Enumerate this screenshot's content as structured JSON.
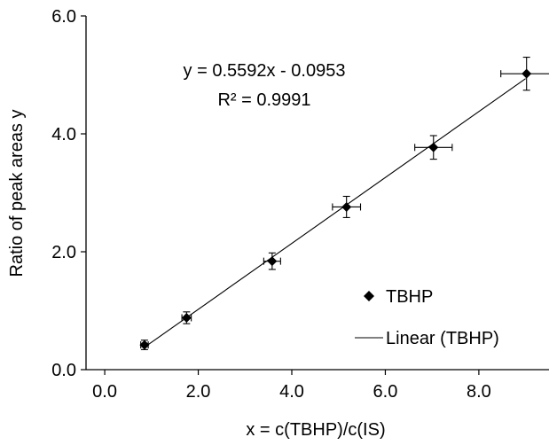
{
  "chart_data": {
    "type": "scatter",
    "title": "",
    "xlabel": "x = c(TBHP)/c(IS)",
    "ylabel": "Ratio of peak areas y",
    "xlim": [
      -0.4,
      9.5
    ],
    "ylim": [
      0.0,
      6.0
    ],
    "xticks": [
      0.0,
      2.0,
      4.0,
      6.0,
      8.0
    ],
    "yticks": [
      0.0,
      2.0,
      4.0,
      6.0
    ],
    "xtick_labels": [
      "0.0",
      "2.0",
      "4.0",
      "6.0",
      "8.0"
    ],
    "ytick_labels": [
      "0.0",
      "2.0",
      "4.0",
      "6.0"
    ],
    "grid": false,
    "legend_position": "bottom-right",
    "equation": "y = 0.5592x - 0.0953",
    "r_squared": "R² = 0.9991",
    "trendline": {
      "name": "Linear (TBHP)",
      "slope": 0.5592,
      "intercept": -0.0953,
      "x_range": [
        0.85,
        9.0
      ]
    },
    "series": [
      {
        "name": "TBHP",
        "points": [
          {
            "x": 0.85,
            "y": 0.42,
            "xerr": 0.08,
            "yerr": 0.08
          },
          {
            "x": 1.75,
            "y": 0.88,
            "xerr": 0.1,
            "yerr": 0.1
          },
          {
            "x": 3.58,
            "y": 1.84,
            "xerr": 0.18,
            "yerr": 0.14
          },
          {
            "x": 5.17,
            "y": 2.76,
            "xerr": 0.3,
            "yerr": 0.18
          },
          {
            "x": 7.03,
            "y": 3.77,
            "xerr": 0.4,
            "yerr": 0.2
          },
          {
            "x": 9.02,
            "y": 5.02,
            "xerr": 0.55,
            "yerr": 0.28
          }
        ]
      }
    ],
    "legend": [
      {
        "label": "TBHP",
        "kind": "marker"
      },
      {
        "label": "Linear (TBHP)",
        "kind": "line"
      }
    ],
    "colors": {
      "series": "#000000",
      "axes": "#000000",
      "background": "#ffffff"
    }
  }
}
